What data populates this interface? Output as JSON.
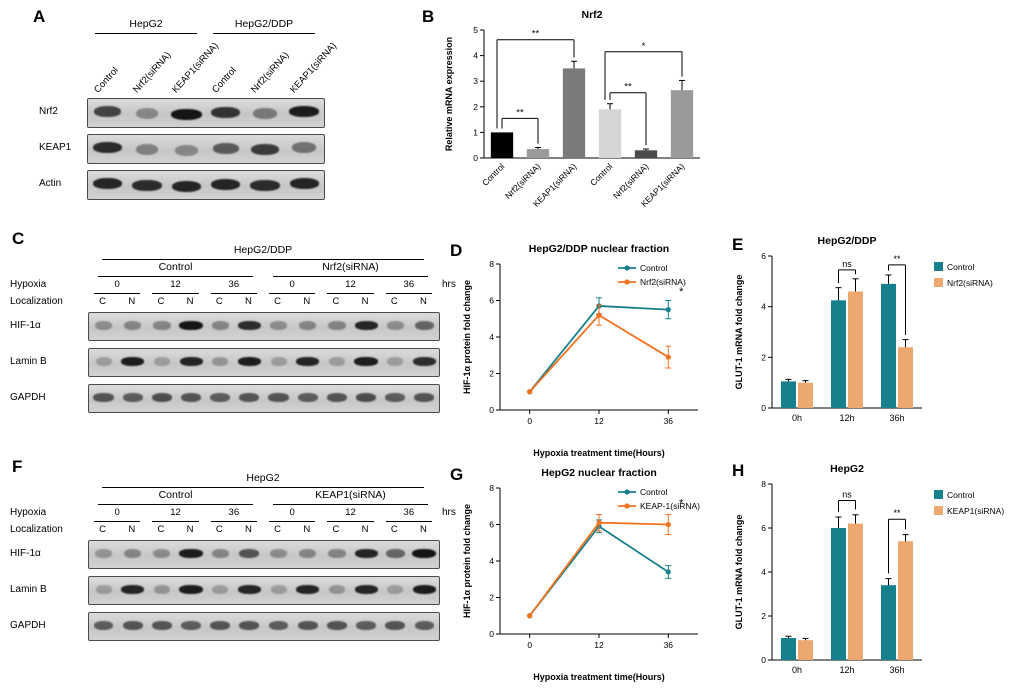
{
  "panel_labels": {
    "A": "A",
    "B": "B",
    "C": "C",
    "D": "D",
    "E": "E",
    "F": "F",
    "G": "G",
    "H": "H"
  },
  "colors": {
    "teal": "#17808d",
    "orange": "#f3711f",
    "tan": "#eda86f",
    "band": "#151515",
    "axis": "#000000"
  },
  "blots": {
    "A": {
      "groups": [
        {
          "label": "HepG2",
          "span": [
            0,
            2
          ]
        },
        {
          "label": "HepG2/DDP",
          "span": [
            3,
            5
          ]
        }
      ],
      "lane_labels": [
        "Control",
        "Nrf2(siRNA)",
        "KEAP1(siRNA)",
        "Control",
        "Nrf2(siRNA)",
        "KEAP1(siRNA)"
      ],
      "rows": [
        {
          "label": "Nrf2",
          "bands": [
            0.7,
            0.25,
            1.0,
            0.8,
            0.35,
            0.95
          ]
        },
        {
          "label": "KEAP1",
          "bands": [
            0.85,
            0.3,
            0.25,
            0.55,
            0.75,
            0.4
          ]
        },
        {
          "label": "Actin",
          "bands": [
            0.9,
            0.85,
            0.9,
            0.9,
            0.85,
            0.9
          ]
        }
      ]
    },
    "C": {
      "cell_line": "HepG2/DDP",
      "subgroups": [
        {
          "label": "Control"
        },
        {
          "label": "Nrf2(siRNA)"
        }
      ],
      "hypoxia_label": "Hypoxia",
      "localization_label": "Localization",
      "hours": [
        "0",
        "12",
        "36",
        "0",
        "12",
        "36"
      ],
      "hrs_label": "hrs",
      "loc": [
        "C",
        "N",
        "C",
        "N",
        "C",
        "N",
        "C",
        "N",
        "C",
        "N",
        "C",
        "N"
      ],
      "rows": [
        {
          "label": "HIF-1α",
          "bands": [
            0.25,
            0.3,
            0.3,
            1.0,
            0.3,
            0.85,
            0.25,
            0.3,
            0.3,
            0.9,
            0.25,
            0.5
          ]
        },
        {
          "label": "Lamin B",
          "bands": [
            0.15,
            0.95,
            0.15,
            0.9,
            0.2,
            0.95,
            0.15,
            0.9,
            0.15,
            0.95,
            0.15,
            0.85
          ]
        },
        {
          "label": "GAPDH",
          "bands": [
            0.6,
            0.55,
            0.65,
            0.6,
            0.55,
            0.6,
            0.6,
            0.55,
            0.6,
            0.65,
            0.55,
            0.6
          ]
        }
      ]
    },
    "F": {
      "cell_line": "HepG2",
      "subgroups": [
        {
          "label": "Control"
        },
        {
          "label": "KEAP1(siRNA)"
        }
      ],
      "hypoxia_label": "Hypoxia",
      "localization_label": "Localization",
      "hours": [
        "0",
        "12",
        "36",
        "0",
        "12",
        "36"
      ],
      "hrs_label": "hrs",
      "loc": [
        "C",
        "N",
        "C",
        "N",
        "C",
        "N",
        "C",
        "N",
        "C",
        "N",
        "C",
        "N"
      ],
      "rows": [
        {
          "label": "HIF-1α",
          "bands": [
            0.2,
            0.3,
            0.25,
            0.95,
            0.3,
            0.6,
            0.25,
            0.3,
            0.3,
            0.9,
            0.5,
            1.0
          ]
        },
        {
          "label": "Lamin B",
          "bands": [
            0.15,
            0.9,
            0.2,
            0.95,
            0.15,
            0.9,
            0.15,
            0.9,
            0.2,
            0.9,
            0.15,
            0.95
          ]
        },
        {
          "label": "GAPDH",
          "bands": [
            0.55,
            0.6,
            0.6,
            0.55,
            0.6,
            0.6,
            0.55,
            0.6,
            0.6,
            0.55,
            0.6,
            0.55
          ]
        }
      ]
    }
  },
  "chart_data": [
    {
      "panel": "B",
      "type": "bar",
      "title": "Nrf2",
      "ylabel": "Relative mRNA expression",
      "ylim": [
        0,
        5
      ],
      "yticks": [
        0,
        1,
        2,
        3,
        4,
        5
      ],
      "categories": [
        "Control",
        "Nrf2(siRNA)",
        "KEAP1(siRNA)",
        "Control",
        "Nrf2(siRNA)",
        "KEAP1(siRNA)"
      ],
      "values": [
        1.0,
        0.35,
        3.5,
        1.9,
        0.3,
        2.65
      ],
      "errors": [
        0,
        0.06,
        0.28,
        0.22,
        0.05,
        0.38
      ],
      "bar_colors": [
        "#000000",
        "#9a9a9a",
        "#7a7a7a",
        "#d6d6d6",
        "#4a4a4a",
        "#9a9a9a"
      ],
      "brackets": [
        {
          "i1": 0,
          "i2": 1,
          "y": 1.55,
          "label": "**"
        },
        {
          "i1": 0,
          "i2": 2,
          "y": 4.62,
          "label": "**",
          "dx1": -5
        },
        {
          "i1": 3,
          "i2": 4,
          "y": 2.55,
          "label": "**"
        },
        {
          "i1": 3,
          "i2": 5,
          "y": 4.15,
          "label": "*",
          "dx1": -5
        }
      ]
    },
    {
      "panel": "D",
      "type": "line",
      "title": "HepG2/DDP nuclear fraction",
      "ylabel": "HIF-1α protein fold change",
      "xlabel": "Hypoxia treatment time(Hours)",
      "ylim": [
        0,
        8
      ],
      "yticks": [
        0,
        2,
        4,
        6,
        8
      ],
      "x": [
        "0",
        "12",
        "36"
      ],
      "series": [
        {
          "name": "Control",
          "color": "#17808d",
          "values": [
            1,
            5.7,
            5.5
          ],
          "errors": [
            0,
            0.45,
            0.5
          ]
        },
        {
          "name": "Nrf2(siRNA)",
          "color": "#f3711f",
          "values": [
            1,
            5.2,
            2.9
          ],
          "errors": [
            0,
            0.55,
            0.6
          ]
        }
      ],
      "annotations": [
        {
          "xi": 2,
          "y": 6.3,
          "dx": 13,
          "text": "*"
        }
      ]
    },
    {
      "panel": "E",
      "type": "bar",
      "title": "HepG2/DDP",
      "ylabel": "GLUT-1 mRNA fold change",
      "ylim": [
        0,
        6
      ],
      "yticks": [
        0,
        2,
        4,
        6
      ],
      "categories": [
        "0h",
        "12h",
        "36h"
      ],
      "series": [
        {
          "name": "Control",
          "color": "#17808d",
          "values": [
            1.05,
            4.25,
            4.9
          ],
          "errors": [
            0.08,
            0.5,
            0.35
          ]
        },
        {
          "name": "Nrf2(siRNA)",
          "color": "#eda86f",
          "values": [
            1.0,
            4.6,
            2.4
          ],
          "errors": [
            0.08,
            0.5,
            0.3
          ]
        }
      ],
      "brackets": [
        {
          "cat": 1,
          "y": 5.45,
          "label": "ns"
        },
        {
          "cat": 2,
          "y": 5.65,
          "label": "**"
        }
      ]
    },
    {
      "panel": "G",
      "type": "line",
      "title": "HepG2 nuclear fraction",
      "ylabel": "HIF-1α protein fold change",
      "xlabel": "Hypoxia treatment time(Hours)",
      "ylim": [
        0,
        8
      ],
      "yticks": [
        0,
        2,
        4,
        6,
        8
      ],
      "x": [
        "0",
        "12",
        "36"
      ],
      "series": [
        {
          "name": "Control",
          "color": "#17808d",
          "values": [
            1,
            5.9,
            3.4
          ],
          "errors": [
            0,
            0.35,
            0.35
          ]
        },
        {
          "name": "KEAP-1(siRNA)",
          "color": "#f3711f",
          "values": [
            1,
            6.1,
            6.0
          ],
          "errors": [
            0,
            0.45,
            0.55
          ]
        }
      ],
      "annotations": [
        {
          "xi": 2,
          "y": 7.0,
          "dx": 13,
          "text": "*"
        }
      ]
    },
    {
      "panel": "H",
      "type": "bar",
      "title": "HepG2",
      "ylabel": "GLUT-1 mRNA fold change",
      "ylim": [
        0,
        8
      ],
      "yticks": [
        0,
        2,
        4,
        6,
        8
      ],
      "categories": [
        "0h",
        "12h",
        "36h"
      ],
      "series": [
        {
          "name": "Control",
          "color": "#17808d",
          "values": [
            1.0,
            6.0,
            3.4
          ],
          "errors": [
            0.08,
            0.5,
            0.3
          ]
        },
        {
          "name": "KEAP1(siRNA)",
          "color": "#eda86f",
          "values": [
            0.9,
            6.2,
            5.4
          ],
          "errors": [
            0.08,
            0.4,
            0.3
          ]
        }
      ],
      "brackets": [
        {
          "cat": 1,
          "y": 7.25,
          "label": "ns"
        },
        {
          "cat": 2,
          "y": 6.4,
          "label": "**"
        }
      ]
    }
  ]
}
